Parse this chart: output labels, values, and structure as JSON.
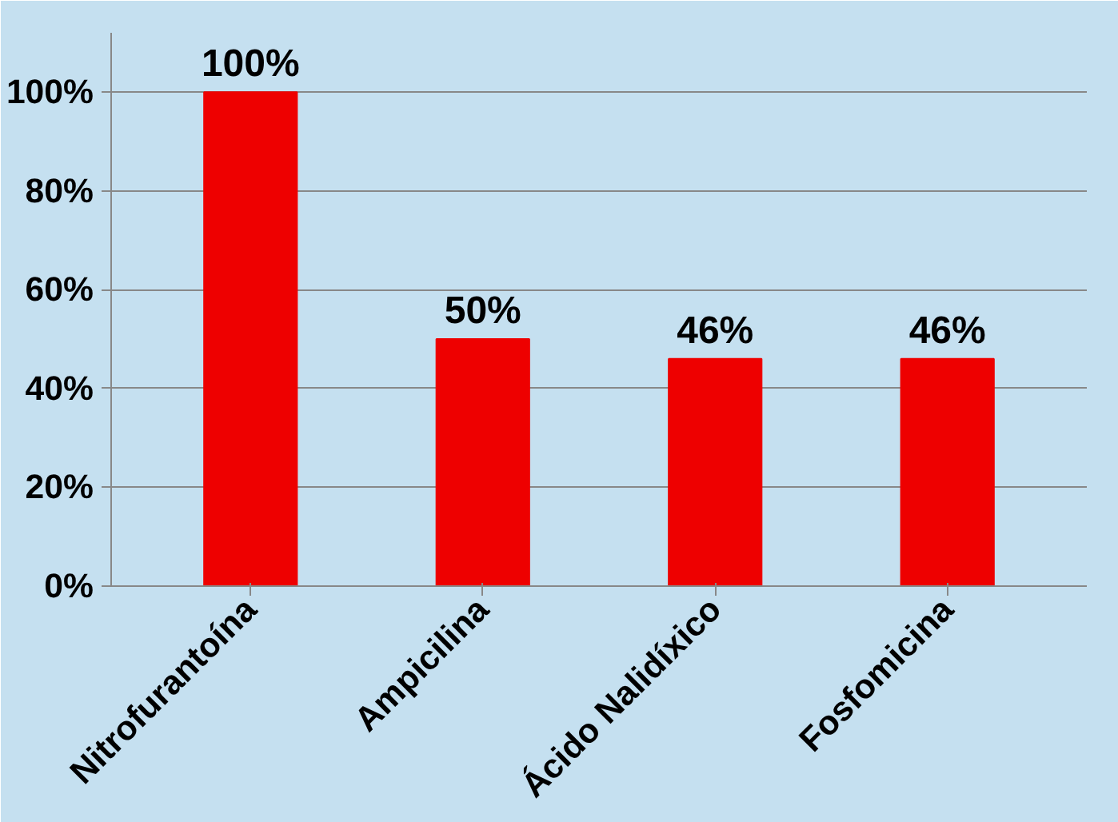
{
  "chart_data": {
    "type": "bar",
    "categories": [
      "Nitrofurantoína",
      "Ampicilina",
      "Ácido Nalidíxico",
      "Fosfomicina"
    ],
    "values": [
      100,
      50,
      46,
      46
    ],
    "value_labels": [
      "100%",
      "50%",
      "46%",
      "46%"
    ],
    "color": "#ee0000",
    "ylim": [
      0,
      100
    ],
    "yticks": [
      {
        "value": 0,
        "label": "0%"
      },
      {
        "value": 20,
        "label": "20%"
      },
      {
        "value": 40,
        "label": "40%"
      },
      {
        "value": 60,
        "label": "60%"
      },
      {
        "value": 80,
        "label": "80%"
      },
      {
        "value": 100,
        "label": "100%"
      }
    ],
    "grid": "y"
  }
}
